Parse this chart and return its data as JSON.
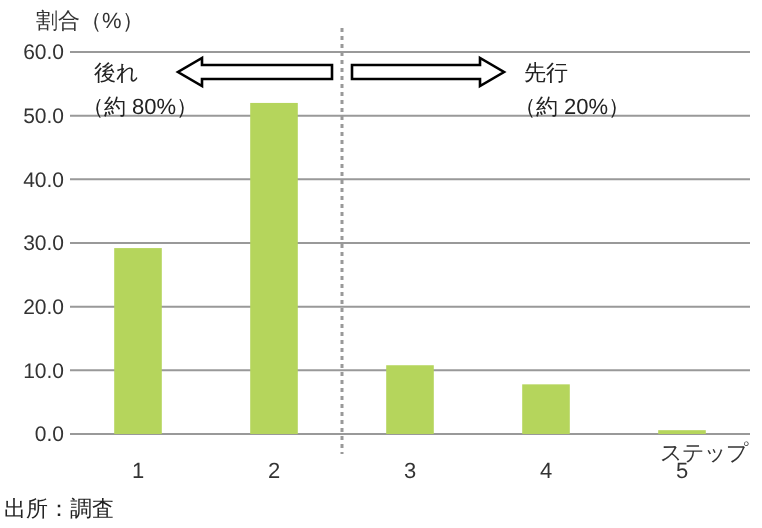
{
  "chart_data": {
    "type": "bar",
    "ylabel": "割合（%）",
    "xlabel": "ステップ",
    "x": [
      1,
      2,
      3,
      4,
      5
    ],
    "xlim": [
      0.5,
      5.5
    ],
    "xticks": [
      1,
      2,
      3,
      4,
      5
    ],
    "values": [
      29.2,
      52,
      10.8,
      7.8,
      0.6
    ],
    "color": "#b5d55c",
    "ylim": [
      0,
      60
    ],
    "yticks": [
      {
        "value": 0,
        "label": "0.0"
      },
      {
        "value": 10,
        "label": "10.0"
      },
      {
        "value": 20,
        "label": "20.0"
      },
      {
        "value": 30,
        "label": "30.0"
      },
      {
        "value": 40,
        "label": "40.0"
      },
      {
        "value": 50,
        "label": "50.0"
      },
      {
        "value": 60,
        "label": "60.0"
      }
    ],
    "grid": "y",
    "ref_lines": [
      {
        "axis": "x",
        "value": 2.5,
        "color": "#999999",
        "line_style": "dotted"
      }
    ],
    "annotations": [
      "後れ",
      "（約 80%）",
      "先行",
      "（約 20%）",
      "出所：調査"
    ]
  }
}
